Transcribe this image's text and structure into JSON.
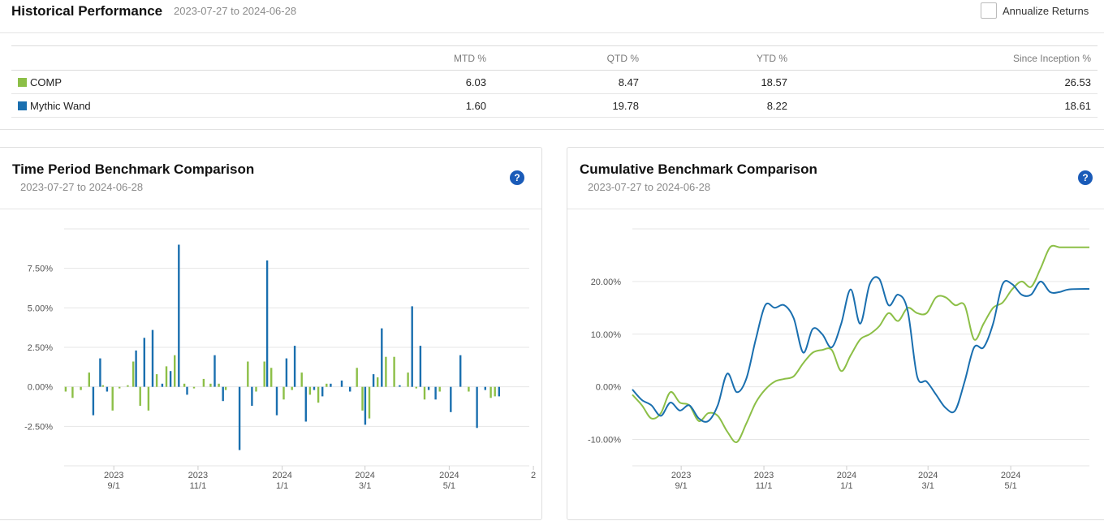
{
  "header": {
    "title": "Historical Performance",
    "range": "2023-07-27 to 2024-06-28",
    "annualize_label": "Annualize Returns",
    "annualize_checked": false
  },
  "table": {
    "columns": [
      "",
      "MTD %",
      "QTD %",
      "YTD %",
      "Since Inception %"
    ],
    "rows": [
      {
        "name": "COMP",
        "color": "#8cbf47",
        "mtd": "6.03",
        "qtd": "8.47",
        "ytd": "18.57",
        "since": "26.53"
      },
      {
        "name": "Mythic Wand",
        "color": "#1a6faf",
        "mtd": "1.60",
        "qtd": "19.78",
        "ytd": "8.22",
        "since": "18.61"
      }
    ]
  },
  "colors": {
    "comp": "#8cbf47",
    "wand": "#1a6faf",
    "help": "#1a5bb8"
  },
  "period_card": {
    "title": "Time Period Benchmark Comparison",
    "range": "2023-07-27 to 2024-06-28",
    "help_icon": "question-circle-icon"
  },
  "cumulative_card": {
    "title": "Cumulative Benchmark Comparison",
    "range": "2023-07-27 to 2024-06-28",
    "help_icon": "question-circle-icon"
  },
  "chart_data": [
    {
      "type": "bar",
      "title": "Time Period Benchmark Comparison",
      "y_ticks": [
        "7.50%",
        "5.00%",
        "2.50%",
        "0.00%",
        "-2.50%"
      ],
      "y_tick_values": [
        7.5,
        5.0,
        2.5,
        0.0,
        -2.5
      ],
      "ylim": [
        -5.0,
        10.0
      ],
      "x_range": [
        "2023-07-27",
        "2024-06-28"
      ],
      "x_ticks": [
        {
          "year": "2023",
          "md": "9/1",
          "date": "2023-09-01"
        },
        {
          "year": "2023",
          "md": "11/1",
          "date": "2023-11-01"
        },
        {
          "year": "2024",
          "md": "1/1",
          "date": "2024-01-01"
        },
        {
          "year": "2024",
          "md": "3/1",
          "date": "2024-03-01"
        },
        {
          "year": "2024",
          "md": "5/1",
          "date": "2024-05-01"
        },
        {
          "year": "2",
          "md": "",
          "date": "2024-07-01"
        }
      ],
      "grid": true,
      "series": [
        {
          "name": "COMP",
          "color": "#8cbf47",
          "points": [
            [
              "2023-07-28",
              -0.3
            ],
            [
              "2023-08-02",
              -0.7
            ],
            [
              "2023-08-08",
              -0.2
            ],
            [
              "2023-08-14",
              0.9
            ],
            [
              "2023-08-24",
              0.1
            ],
            [
              "2023-08-31",
              -1.5
            ],
            [
              "2023-09-05",
              -0.1
            ],
            [
              "2023-09-11",
              0.1
            ],
            [
              "2023-09-15",
              1.6
            ],
            [
              "2023-09-20",
              -1.2
            ],
            [
              "2023-09-26",
              -1.5
            ],
            [
              "2023-10-02",
              0.8
            ],
            [
              "2023-10-09",
              1.3
            ],
            [
              "2023-10-15",
              2.0
            ],
            [
              "2023-10-22",
              0.2
            ],
            [
              "2023-10-29",
              -0.1
            ],
            [
              "2023-11-05",
              0.5
            ],
            [
              "2023-11-10",
              0.2
            ],
            [
              "2023-11-16",
              0.2
            ],
            [
              "2023-11-21",
              -0.2
            ],
            [
              "2023-12-07",
              1.6
            ],
            [
              "2023-12-13",
              -0.3
            ],
            [
              "2023-12-19",
              1.6
            ],
            [
              "2023-12-24",
              1.2
            ],
            [
              "2024-01-02",
              -0.8
            ],
            [
              "2024-01-08",
              -0.2
            ],
            [
              "2024-01-15",
              0.9
            ],
            [
              "2024-01-21",
              -0.5
            ],
            [
              "2024-01-27",
              -1.0
            ],
            [
              "2024-02-02",
              0.2
            ],
            [
              "2024-02-24",
              1.2
            ],
            [
              "2024-02-28",
              -1.5
            ],
            [
              "2024-03-04",
              -2.0
            ],
            [
              "2024-03-10",
              0.6
            ],
            [
              "2024-03-16",
              1.9
            ],
            [
              "2024-03-22",
              1.9
            ],
            [
              "2024-04-01",
              0.9
            ],
            [
              "2024-04-07",
              -0.1
            ],
            [
              "2024-04-13",
              -0.8
            ],
            [
              "2024-04-24",
              -0.3
            ],
            [
              "2024-05-15",
              -0.3
            ],
            [
              "2024-05-31",
              -0.7
            ],
            [
              "2024-06-03",
              -0.6
            ]
          ]
        },
        {
          "name": "Mythic Wand",
          "color": "#1a6faf",
          "points": [
            [
              "2023-08-17",
              -1.8
            ],
            [
              "2023-08-22",
              1.8
            ],
            [
              "2023-08-27",
              -0.3
            ],
            [
              "2023-09-17",
              2.3
            ],
            [
              "2023-09-23",
              3.1
            ],
            [
              "2023-09-29",
              3.6
            ],
            [
              "2023-10-06",
              0.2
            ],
            [
              "2023-10-12",
              1.0
            ],
            [
              "2023-10-18",
              9.0
            ],
            [
              "2023-10-24",
              -0.5
            ],
            [
              "2023-11-13",
              2.0
            ],
            [
              "2023-11-19",
              -0.9
            ],
            [
              "2023-12-01",
              -4.0
            ],
            [
              "2023-12-10",
              -1.2
            ],
            [
              "2023-12-21",
              8.0
            ],
            [
              "2023-12-28",
              -1.8
            ],
            [
              "2024-01-04",
              1.8
            ],
            [
              "2024-01-10",
              2.6
            ],
            [
              "2024-01-18",
              -2.2
            ],
            [
              "2024-01-24",
              -0.2
            ],
            [
              "2024-01-30",
              -0.6
            ],
            [
              "2024-02-05",
              0.2
            ],
            [
              "2024-02-13",
              0.4
            ],
            [
              "2024-02-19",
              -0.3
            ],
            [
              "2024-03-01",
              -2.4
            ],
            [
              "2024-03-07",
              0.8
            ],
            [
              "2024-03-13",
              3.7
            ],
            [
              "2024-03-26",
              0.1
            ],
            [
              "2024-04-04",
              5.1
            ],
            [
              "2024-04-10",
              2.6
            ],
            [
              "2024-04-16",
              -0.2
            ],
            [
              "2024-04-21",
              -0.8
            ],
            [
              "2024-05-02",
              -1.6
            ],
            [
              "2024-05-09",
              2.0
            ],
            [
              "2024-05-21",
              -2.6
            ],
            [
              "2024-05-27",
              -0.2
            ],
            [
              "2024-06-06",
              -0.6
            ]
          ]
        }
      ]
    },
    {
      "type": "line",
      "title": "Cumulative Benchmark Comparison",
      "y_ticks": [
        "20.00%",
        "10.00%",
        "0.00%",
        "-10.00%"
      ],
      "y_tick_values": [
        20,
        10,
        0,
        -10
      ],
      "ylim": [
        -15,
        30
      ],
      "x_range": [
        "2023-07-27",
        "2024-06-28"
      ],
      "x_ticks": [
        {
          "year": "2023",
          "md": "9/1",
          "date": "2023-09-01"
        },
        {
          "year": "2023",
          "md": "11/1",
          "date": "2023-11-01"
        },
        {
          "year": "2024",
          "md": "1/1",
          "date": "2024-01-01"
        },
        {
          "year": "2024",
          "md": "3/1",
          "date": "2024-03-01"
        },
        {
          "year": "2024",
          "md": "5/1",
          "date": "2024-05-01"
        }
      ],
      "grid": true,
      "series": [
        {
          "name": "COMP",
          "color": "#8cbf47",
          "points": [
            [
              "2023-07-27",
              -1.5
            ],
            [
              "2023-08-03",
              -3.5
            ],
            [
              "2023-08-10",
              -6.0
            ],
            [
              "2023-08-17",
              -5.0
            ],
            [
              "2023-08-24",
              -1.0
            ],
            [
              "2023-08-31",
              -3.0
            ],
            [
              "2023-09-07",
              -3.5
            ],
            [
              "2023-09-14",
              -6.5
            ],
            [
              "2023-09-21",
              -5.0
            ],
            [
              "2023-09-28",
              -5.5
            ],
            [
              "2023-10-05",
              -8.5
            ],
            [
              "2023-10-12",
              -10.5
            ],
            [
              "2023-10-19",
              -7.0
            ],
            [
              "2023-10-26",
              -3.0
            ],
            [
              "2023-11-02",
              -0.5
            ],
            [
              "2023-11-09",
              1.0
            ],
            [
              "2023-11-16",
              1.5
            ],
            [
              "2023-11-23",
              2.0
            ],
            [
              "2023-11-30",
              4.5
            ],
            [
              "2023-12-07",
              6.5
            ],
            [
              "2023-12-14",
              7.0
            ],
            [
              "2023-12-21",
              7.0
            ],
            [
              "2023-12-28",
              3.0
            ],
            [
              "2024-01-04",
              6.0
            ],
            [
              "2024-01-11",
              9.0
            ],
            [
              "2024-01-18",
              10.0
            ],
            [
              "2024-01-25",
              11.5
            ],
            [
              "2024-02-01",
              14.0
            ],
            [
              "2024-02-08",
              12.5
            ],
            [
              "2024-02-15",
              15.0
            ],
            [
              "2024-02-22",
              14.0
            ],
            [
              "2024-02-29",
              14.0
            ],
            [
              "2024-03-07",
              17.0
            ],
            [
              "2024-03-14",
              17.0
            ],
            [
              "2024-03-21",
              15.5
            ],
            [
              "2024-03-28",
              15.5
            ],
            [
              "2024-04-04",
              9.0
            ],
            [
              "2024-04-11",
              12.0
            ],
            [
              "2024-04-18",
              15.0
            ],
            [
              "2024-04-25",
              16.0
            ],
            [
              "2024-05-02",
              18.5
            ],
            [
              "2024-05-09",
              20.0
            ],
            [
              "2024-05-16",
              19.0
            ],
            [
              "2024-05-23",
              22.5
            ],
            [
              "2024-05-30",
              26.5
            ],
            [
              "2024-06-06",
              26.5
            ],
            [
              "2024-06-13",
              26.5
            ],
            [
              "2024-06-28",
              26.5
            ]
          ]
        },
        {
          "name": "Mythic Wand",
          "color": "#1a6faf",
          "points": [
            [
              "2023-07-27",
              -0.5
            ],
            [
              "2023-08-03",
              -2.5
            ],
            [
              "2023-08-10",
              -3.5
            ],
            [
              "2023-08-17",
              -5.5
            ],
            [
              "2023-08-24",
              -3.0
            ],
            [
              "2023-08-31",
              -4.5
            ],
            [
              "2023-09-07",
              -3.5
            ],
            [
              "2023-09-14",
              -6.0
            ],
            [
              "2023-09-21",
              -6.5
            ],
            [
              "2023-09-28",
              -3.5
            ],
            [
              "2023-10-05",
              2.5
            ],
            [
              "2023-10-12",
              -1.0
            ],
            [
              "2023-10-19",
              1.5
            ],
            [
              "2023-10-26",
              9.0
            ],
            [
              "2023-11-02",
              15.5
            ],
            [
              "2023-11-09",
              15.0
            ],
            [
              "2023-11-16",
              15.5
            ],
            [
              "2023-11-23",
              13.0
            ],
            [
              "2023-11-30",
              6.5
            ],
            [
              "2023-12-07",
              11.0
            ],
            [
              "2023-12-14",
              10.0
            ],
            [
              "2023-12-21",
              7.5
            ],
            [
              "2023-12-28",
              12.0
            ],
            [
              "2024-01-04",
              18.5
            ],
            [
              "2024-01-11",
              12.0
            ],
            [
              "2024-01-18",
              19.5
            ],
            [
              "2024-01-25",
              20.5
            ],
            [
              "2024-02-01",
              15.5
            ],
            [
              "2024-02-08",
              17.5
            ],
            [
              "2024-02-15",
              14.5
            ],
            [
              "2024-02-22",
              2.0
            ],
            [
              "2024-02-29",
              1.0
            ],
            [
              "2024-03-07",
              -1.5
            ],
            [
              "2024-03-14",
              -4.0
            ],
            [
              "2024-03-21",
              -4.5
            ],
            [
              "2024-03-28",
              1.0
            ],
            [
              "2024-04-04",
              7.5
            ],
            [
              "2024-04-11",
              7.5
            ],
            [
              "2024-04-18",
              12.0
            ],
            [
              "2024-04-25",
              19.5
            ],
            [
              "2024-05-02",
              19.5
            ],
            [
              "2024-05-09",
              17.5
            ],
            [
              "2024-05-16",
              17.5
            ],
            [
              "2024-05-23",
              20.0
            ],
            [
              "2024-05-30",
              18.0
            ],
            [
              "2024-06-06",
              18.0
            ],
            [
              "2024-06-13",
              18.5
            ],
            [
              "2024-06-28",
              18.6
            ]
          ]
        }
      ]
    }
  ]
}
